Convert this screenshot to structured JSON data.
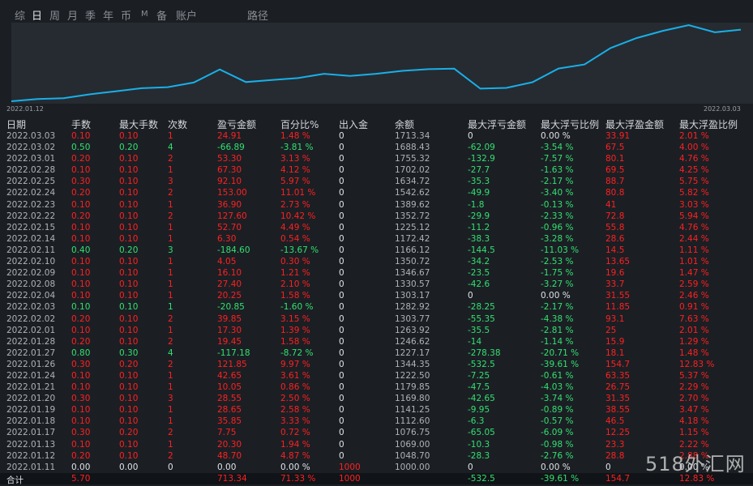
{
  "tabs": [
    "综",
    "日",
    "周",
    "月",
    "季",
    "年",
    "币",
    "M",
    "备",
    "账户",
    "路径"
  ],
  "active_tab": 1,
  "chart": {
    "start_date": "2022.01.12",
    "end_date": "2022.03.03",
    "line_color": "#18b0e8",
    "balances": [
      1048.7,
      1069.0,
      1076.75,
      1112.6,
      1141.25,
      1169.8,
      1179.85,
      1222.5,
      1344.35,
      1227.17,
      1246.62,
      1263.92,
      1303.77,
      1282.92,
      1303.17,
      1330.57,
      1346.67,
      1350.72,
      1166.12,
      1172.42,
      1225.12,
      1352.72,
      1389.62,
      1542.62,
      1634.72,
      1702.02,
      1755.32,
      1688.43,
      1713.34
    ]
  },
  "headers": [
    "日期",
    "手数",
    "最大手数",
    "次数",
    "盈亏金额",
    "百分比%",
    "出入金",
    "余额",
    "最大浮亏金额",
    "最大浮亏比例",
    "最大浮盈金额",
    "最大浮盈比例"
  ],
  "rows": [
    [
      "2022.03.03",
      "0.10",
      "0.10",
      "1",
      "24.91",
      "1.48 %",
      "0",
      "1713.34",
      "0",
      "0.00 %",
      "33.91",
      "2.01 %"
    ],
    [
      "2022.03.02",
      "0.50",
      "0.20",
      "4",
      "-66.89",
      "-3.81 %",
      "0",
      "1688.43",
      "-62.09",
      "-3.54 %",
      "67.5",
      "4.00 %"
    ],
    [
      "2022.03.01",
      "0.20",
      "0.10",
      "2",
      "53.30",
      "3.13 %",
      "0",
      "1755.32",
      "-132.9",
      "-7.57 %",
      "80.1",
      "4.76 %"
    ],
    [
      "2022.02.28",
      "0.10",
      "0.10",
      "1",
      "67.30",
      "4.12 %",
      "0",
      "1702.02",
      "-27.7",
      "-1.63 %",
      "69.5",
      "4.25 %"
    ],
    [
      "2022.02.25",
      "0.30",
      "0.10",
      "3",
      "92.10",
      "5.97 %",
      "0",
      "1634.72",
      "-35.3",
      "-2.17 %",
      "88.7",
      "5.75 %"
    ],
    [
      "2022.02.24",
      "0.20",
      "0.10",
      "2",
      "153.00",
      "11.01 %",
      "0",
      "1542.62",
      "-49.9",
      "-3.40 %",
      "80.8",
      "5.82 %"
    ],
    [
      "2022.02.23",
      "0.10",
      "0.10",
      "1",
      "36.90",
      "2.73 %",
      "0",
      "1389.62",
      "-1.8",
      "-0.13 %",
      "41",
      "3.03 %"
    ],
    [
      "2022.02.22",
      "0.20",
      "0.10",
      "2",
      "127.60",
      "10.42 %",
      "0",
      "1352.72",
      "-29.9",
      "-2.33 %",
      "72.8",
      "5.94 %"
    ],
    [
      "2022.02.15",
      "0.10",
      "0.10",
      "1",
      "52.70",
      "4.49 %",
      "0",
      "1225.12",
      "-11.2",
      "-0.96 %",
      "55.8",
      "4.76 %"
    ],
    [
      "2022.02.14",
      "0.10",
      "0.10",
      "1",
      "6.30",
      "0.54 %",
      "0",
      "1172.42",
      "-38.3",
      "-3.28 %",
      "28.6",
      "2.44 %"
    ],
    [
      "2022.02.11",
      "0.40",
      "0.20",
      "3",
      "-184.60",
      "-13.67 %",
      "0",
      "1166.12",
      "-144.5",
      "-11.03 %",
      "14.5",
      "1.11 %"
    ],
    [
      "2022.02.10",
      "0.10",
      "0.10",
      "1",
      "4.05",
      "0.30 %",
      "0",
      "1350.72",
      "-34.2",
      "-2.53 %",
      "13.65",
      "1.01 %"
    ],
    [
      "2022.02.09",
      "0.10",
      "0.10",
      "1",
      "16.10",
      "1.21 %",
      "0",
      "1346.67",
      "-23.5",
      "-1.75 %",
      "19.6",
      "1.47 %"
    ],
    [
      "2022.02.08",
      "0.10",
      "0.10",
      "1",
      "27.40",
      "2.10 %",
      "0",
      "1330.57",
      "-42.6",
      "-3.27 %",
      "33.7",
      "2.59 %"
    ],
    [
      "2022.02.04",
      "0.10",
      "0.10",
      "1",
      "20.25",
      "1.58 %",
      "0",
      "1303.17",
      "0",
      "0.00 %",
      "31.55",
      "2.46 %"
    ],
    [
      "2022.02.03",
      "0.10",
      "0.10",
      "1",
      "-20.85",
      "-1.60 %",
      "0",
      "1282.92",
      "-28.25",
      "-2.17 %",
      "11.85",
      "0.91 %"
    ],
    [
      "2022.02.02",
      "0.20",
      "0.10",
      "2",
      "39.85",
      "3.15 %",
      "0",
      "1303.77",
      "-55.35",
      "-4.38 %",
      "93.1",
      "7.63 %"
    ],
    [
      "2022.02.01",
      "0.10",
      "0.10",
      "1",
      "17.30",
      "1.39 %",
      "0",
      "1263.92",
      "-35.5",
      "-2.81 %",
      "25",
      "2.01 %"
    ],
    [
      "2022.01.28",
      "0.20",
      "0.10",
      "2",
      "19.45",
      "1.58 %",
      "0",
      "1246.62",
      "-14",
      "-1.14 %",
      "15.9",
      "1.29 %"
    ],
    [
      "2022.01.27",
      "0.80",
      "0.30",
      "4",
      "-117.18",
      "-8.72 %",
      "0",
      "1227.17",
      "-278.38",
      "-20.71 %",
      "18.1",
      "1.48 %"
    ],
    [
      "2022.01.26",
      "0.30",
      "0.20",
      "2",
      "121.85",
      "9.97 %",
      "0",
      "1344.35",
      "-532.5",
      "-39.61 %",
      "154.7",
      "12.83 %"
    ],
    [
      "2022.01.24",
      "0.10",
      "0.10",
      "1",
      "42.65",
      "3.61 %",
      "0",
      "1222.50",
      "-7.25",
      "-0.61 %",
      "63.35",
      "5.37 %"
    ],
    [
      "2022.01.21",
      "0.10",
      "0.10",
      "1",
      "10.05",
      "0.86 %",
      "0",
      "1179.85",
      "-47.5",
      "-4.03 %",
      "26.75",
      "2.29 %"
    ],
    [
      "2022.01.20",
      "0.30",
      "0.10",
      "3",
      "28.55",
      "2.50 %",
      "0",
      "1169.80",
      "-42.65",
      "-3.74 %",
      "31.35",
      "2.70 %"
    ],
    [
      "2022.01.19",
      "0.10",
      "0.10",
      "1",
      "28.65",
      "2.58 %",
      "0",
      "1141.25",
      "-9.95",
      "-0.89 %",
      "38.55",
      "3.47 %"
    ],
    [
      "2022.01.18",
      "0.10",
      "0.10",
      "1",
      "35.85",
      "3.33 %",
      "0",
      "1112.60",
      "-6.3",
      "-0.57 %",
      "46.5",
      "4.18 %"
    ],
    [
      "2022.01.17",
      "0.30",
      "0.20",
      "2",
      "7.75",
      "0.72 %",
      "0",
      "1076.75",
      "-65.05",
      "-6.09 %",
      "12.25",
      "1.15 %"
    ],
    [
      "2022.01.13",
      "0.10",
      "0.10",
      "1",
      "20.30",
      "1.94 %",
      "0",
      "1069.00",
      "-10.3",
      "-0.98 %",
      "23.3",
      "2.22 %"
    ],
    [
      "2022.01.12",
      "0.20",
      "0.10",
      "2",
      "48.70",
      "4.87 %",
      "0",
      "1048.70",
      "-28.3",
      "-2.76 %",
      "28.8",
      "2.88 %"
    ],
    [
      "2022.01.11",
      "0.00",
      "0.00",
      "0",
      "0.00",
      "0.00 %",
      "1000",
      "1000.00",
      "0",
      "0.00 %",
      "0",
      "0.00 %"
    ]
  ],
  "total": [
    "合计",
    "5.70",
    "",
    "",
    "713.34",
    "71.33 %",
    "1000",
    "",
    "-532.5",
    "-39.61 %",
    "154.7",
    "12.83 %"
  ],
  "watermark": "518外汇网",
  "colors": {
    "positive": "#ff2020",
    "negative": "#33e070",
    "neutral": "#dfe2e5"
  }
}
